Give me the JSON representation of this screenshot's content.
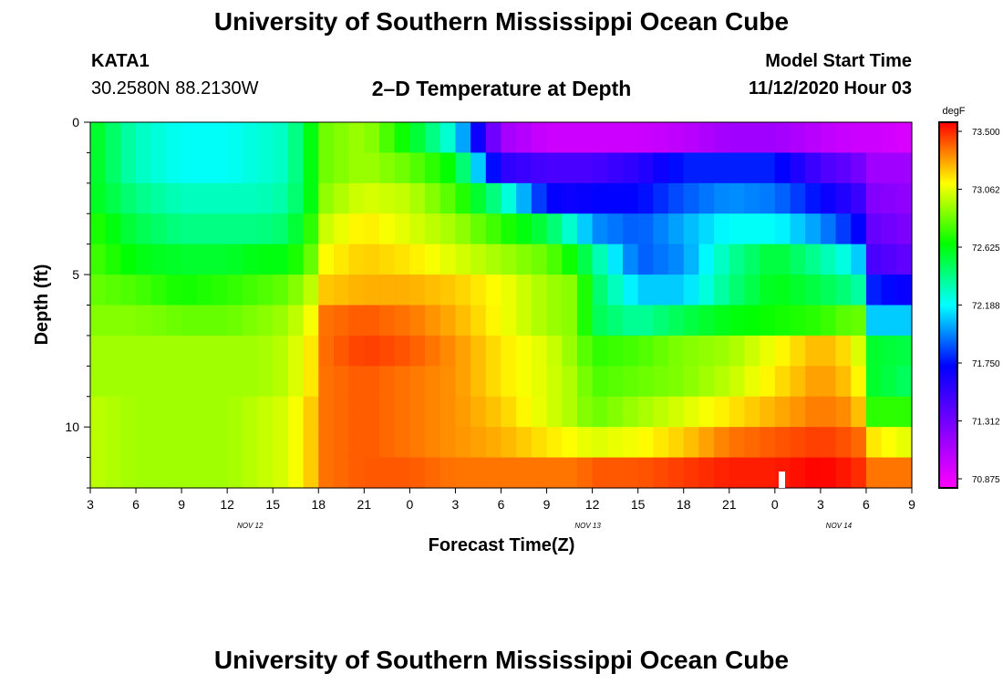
{
  "header": {
    "title": "University of Southern Mississippi Ocean Cube",
    "station": "KATA1",
    "coords": "30.2580N 88.2130W",
    "subtitle": "2–D Temperature at Depth",
    "model_start_label": "Model Start Time",
    "model_start_value": "11/12/2020 Hour 03"
  },
  "footer": {
    "title": "University of Southern Mississippi Ocean Cube"
  },
  "chart_data": {
    "type": "heatmap",
    "title": "2–D Temperature at Depth",
    "xlabel": "Forecast Time(Z)",
    "ylabel": "Depth (ft)",
    "x_tick_labels": [
      "3",
      "6",
      "9",
      "12",
      "15",
      "18",
      "21",
      "0",
      "3",
      "6",
      "9",
      "12",
      "15",
      "18",
      "21",
      "0",
      "3",
      "6",
      "9"
    ],
    "date_labels": [
      {
        "text": "NOV 12",
        "tick_index": 3.5
      },
      {
        "text": "NOV 13",
        "tick_index": 10.9
      },
      {
        "text": "NOV 14",
        "tick_index": 16.4
      }
    ],
    "y_ticks": [
      0,
      5,
      10
    ],
    "y_tick_labels": [
      "0",
      "5",
      "10"
    ],
    "ylim": [
      0,
      12
    ],
    "x_range_hours": [
      0,
      54
    ],
    "colorbar": {
      "unit": "degF",
      "min": 70.875,
      "max": 73.5,
      "labels": [
        "73.500",
        "73.062",
        "72.625",
        "72.188",
        "71.750",
        "71.312",
        "70.875"
      ]
    },
    "depth_levels_ft": [
      0.5,
      1.5,
      2.5,
      3.5,
      4.5,
      5.5,
      6.5,
      7.5,
      8.5,
      9.5,
      10.5,
      11.5
    ],
    "time_control_hours": [
      0,
      3,
      6,
      9,
      11,
      13,
      14.5,
      15,
      18,
      21,
      24,
      27,
      30,
      32,
      33,
      36,
      39,
      42,
      45,
      48,
      50,
      51,
      51.5,
      54
    ],
    "temperature_degF": [
      [
        72.6,
        72.3,
        72.2,
        72.2,
        72.25,
        72.3,
        72.6,
        72.8,
        72.9,
        72.6,
        72.2,
        71.2,
        71.05,
        71.05,
        71.05,
        71.05,
        71.1,
        71.2,
        71.2,
        71.1,
        71.05,
        71.05,
        71.05,
        71.0
      ],
      [
        72.6,
        72.3,
        72.2,
        72.2,
        72.25,
        72.3,
        72.6,
        72.8,
        72.9,
        72.8,
        72.6,
        71.6,
        71.5,
        71.5,
        71.5,
        71.6,
        71.8,
        71.8,
        71.8,
        71.5,
        71.4,
        71.3,
        71.2,
        71.2
      ],
      [
        72.6,
        72.4,
        72.3,
        72.3,
        72.3,
        72.35,
        72.6,
        72.85,
        73.0,
        72.95,
        72.75,
        72.35,
        71.75,
        71.7,
        71.75,
        71.75,
        71.9,
        72.0,
        71.95,
        71.75,
        71.6,
        71.5,
        71.3,
        71.25
      ],
      [
        72.7,
        72.5,
        72.4,
        72.4,
        72.4,
        72.45,
        72.7,
        72.95,
        73.1,
        73.0,
        72.9,
        72.7,
        72.5,
        72.2,
        72.0,
        71.9,
        72.05,
        72.2,
        72.2,
        72.0,
        71.8,
        71.7,
        71.4,
        71.3
      ],
      [
        72.75,
        72.6,
        72.55,
        72.55,
        72.6,
        72.6,
        72.8,
        73.05,
        73.15,
        73.1,
        73.0,
        72.9,
        72.8,
        72.6,
        72.4,
        71.9,
        72.0,
        72.35,
        72.55,
        72.35,
        72.2,
        72.0,
        71.5,
        71.4
      ],
      [
        72.8,
        72.75,
        72.65,
        72.7,
        72.75,
        72.8,
        72.95,
        73.15,
        73.2,
        73.2,
        73.15,
        73.05,
        72.9,
        72.85,
        72.5,
        72.1,
        72.1,
        72.4,
        72.6,
        72.5,
        72.4,
        72.3,
        71.8,
        71.7
      ],
      [
        72.85,
        72.85,
        72.8,
        72.8,
        72.85,
        72.9,
        73.05,
        73.3,
        73.35,
        73.3,
        73.2,
        73.05,
        72.9,
        72.85,
        72.5,
        72.35,
        72.5,
        72.6,
        72.65,
        72.7,
        72.8,
        72.8,
        72.1,
        72.1
      ],
      [
        72.9,
        72.9,
        72.9,
        72.9,
        72.9,
        72.95,
        73.1,
        73.3,
        73.4,
        73.35,
        73.25,
        73.1,
        73.0,
        72.85,
        72.7,
        72.75,
        72.85,
        72.9,
        73.05,
        73.2,
        73.1,
        72.9,
        72.55,
        72.5
      ],
      [
        72.9,
        72.9,
        72.9,
        72.9,
        72.9,
        72.95,
        73.1,
        73.3,
        73.35,
        73.3,
        73.25,
        73.1,
        73.0,
        72.9,
        72.75,
        72.8,
        72.85,
        72.95,
        73.1,
        73.25,
        73.15,
        73.0,
        72.55,
        72.45
      ],
      [
        72.95,
        72.9,
        72.9,
        72.9,
        72.95,
        73.0,
        73.15,
        73.3,
        73.35,
        73.3,
        73.25,
        73.15,
        73.0,
        72.9,
        72.8,
        72.9,
        73.0,
        73.1,
        73.2,
        73.3,
        73.25,
        73.1,
        72.7,
        72.7
      ],
      [
        72.95,
        72.9,
        72.9,
        72.9,
        72.95,
        73.0,
        73.15,
        73.3,
        73.35,
        73.3,
        73.25,
        73.2,
        73.1,
        73.05,
        73.0,
        73.05,
        73.15,
        73.3,
        73.35,
        73.4,
        73.35,
        73.3,
        73.1,
        73.0
      ],
      [
        72.95,
        72.9,
        72.9,
        72.9,
        72.95,
        73.0,
        73.15,
        73.3,
        73.35,
        73.35,
        73.3,
        73.3,
        73.3,
        73.3,
        73.35,
        73.35,
        73.4,
        73.45,
        73.45,
        73.5,
        73.45,
        73.4,
        73.3,
        73.3
      ]
    ]
  }
}
